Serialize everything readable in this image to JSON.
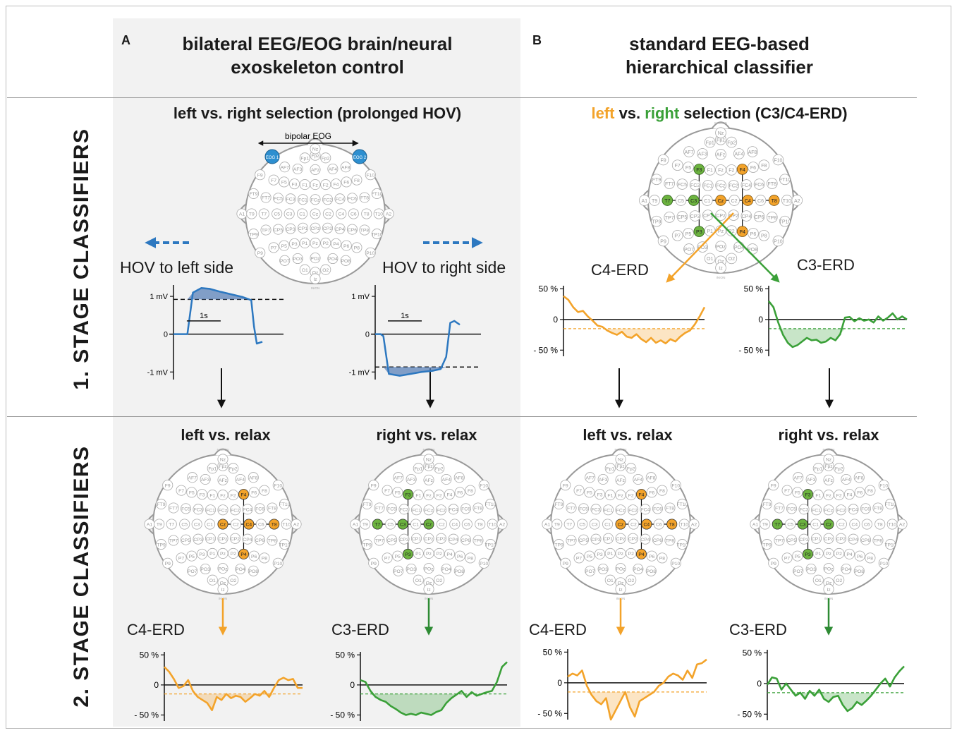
{
  "panel_a": {
    "letter": "A",
    "title_line1": "bilateral EEG/EOG brain/neural",
    "title_line2": "exoskeleton control"
  },
  "panel_b": {
    "letter": "B",
    "title_line1": "standard EEG-based",
    "title_line2": "hierarchical classifier"
  },
  "stage1": {
    "label": "1. STAGE CLASSIFIERS",
    "a_heading": "left vs. right selection (prolonged HOV)",
    "b_heading_left": "left",
    "b_heading_vs": " vs. ",
    "b_heading_right": "right",
    "b_heading_rest": " selection (C3/C4-ERD)",
    "bipolar_label": "bipolar EOG",
    "eog1": "EOG 1",
    "eog2": "EOG 2",
    "hov_left": "HOV to left side",
    "hov_right": "HOV to right side",
    "eog_ticks": {
      "top": "1 mV",
      "mid": "0",
      "bottom": "-1 mV",
      "scale": "1s"
    },
    "erd_left": "C4-ERD",
    "erd_right": "C3-ERD"
  },
  "stage2": {
    "label": "2. STAGE CLASSIFIERS",
    "left_relax": "left vs. relax",
    "right_relax": "right vs. relax",
    "erd_c4": "C4-ERD",
    "erd_c3": "C3-ERD"
  },
  "erd_ticks": {
    "top": "50 %",
    "mid": "0",
    "bottom": "- 50 %"
  },
  "head_labels": {
    "nasion": "NASION",
    "inion": "INION"
  },
  "electrodes": [
    [
      "Fp1",
      -0.16,
      -0.86
    ],
    [
      "Fpz",
      0,
      -0.9
    ],
    [
      "Fp2",
      0.16,
      -0.86
    ],
    [
      "Nz",
      0,
      -1.0
    ],
    [
      "AF7",
      -0.47,
      -0.72
    ],
    [
      "AF3",
      -0.27,
      -0.69
    ],
    [
      "AFz",
      0,
      -0.68
    ],
    [
      "AF4",
      0.27,
      -0.69
    ],
    [
      "AF8",
      0.47,
      -0.72
    ],
    [
      "F9",
      -0.85,
      -0.6
    ],
    [
      "F7",
      -0.64,
      -0.52
    ],
    [
      "F5",
      -0.48,
      -0.49
    ],
    [
      "F3",
      -0.32,
      -0.46
    ],
    [
      "F1",
      -0.16,
      -0.45
    ],
    [
      "Fz",
      0,
      -0.45
    ],
    [
      "F2",
      0.16,
      -0.45
    ],
    [
      "F4",
      0.32,
      -0.46
    ],
    [
      "F6",
      0.48,
      -0.49
    ],
    [
      "F8",
      0.64,
      -0.52
    ],
    [
      "F10",
      0.85,
      -0.6
    ],
    [
      "FT9",
      -0.95,
      -0.31
    ],
    [
      "FT7",
      -0.76,
      -0.25
    ],
    [
      "FC5",
      -0.57,
      -0.24
    ],
    [
      "FC3",
      -0.38,
      -0.23
    ],
    [
      "FC1",
      -0.19,
      -0.22
    ],
    [
      "FCz",
      0,
      -0.22
    ],
    [
      "FC2",
      0.19,
      -0.22
    ],
    [
      "FC4",
      0.38,
      -0.23
    ],
    [
      "FC6",
      0.57,
      -0.24
    ],
    [
      "FT8",
      0.76,
      -0.25
    ],
    [
      "FT10",
      0.95,
      -0.31
    ],
    [
      "A1",
      -1.13,
      0
    ],
    [
      "T9",
      -0.98,
      0
    ],
    [
      "T7",
      -0.79,
      0
    ],
    [
      "C5",
      -0.59,
      0
    ],
    [
      "C3",
      -0.4,
      0
    ],
    [
      "C1",
      -0.2,
      0
    ],
    [
      "Cz",
      0,
      0
    ],
    [
      "C2",
      0.2,
      0
    ],
    [
      "C4",
      0.4,
      0
    ],
    [
      "C6",
      0.59,
      0
    ],
    [
      "T8",
      0.79,
      0
    ],
    [
      "T10",
      0.98,
      0
    ],
    [
      "A2",
      1.13,
      0
    ],
    [
      "TP9",
      -0.95,
      0.31
    ],
    [
      "TP7",
      -0.76,
      0.25
    ],
    [
      "CP5",
      -0.57,
      0.24
    ],
    [
      "CP3",
      -0.38,
      0.23
    ],
    [
      "CP1",
      -0.19,
      0.22
    ],
    [
      "CPz",
      0,
      0.22
    ],
    [
      "CP2",
      0.19,
      0.22
    ],
    [
      "CP4",
      0.38,
      0.23
    ],
    [
      "CP6",
      0.57,
      0.24
    ],
    [
      "TP8",
      0.76,
      0.25
    ],
    [
      "TP10",
      0.95,
      0.31
    ],
    [
      "P9",
      -0.85,
      0.6
    ],
    [
      "P7",
      -0.64,
      0.52
    ],
    [
      "P5",
      -0.48,
      0.49
    ],
    [
      "P3",
      -0.32,
      0.46
    ],
    [
      "P1",
      -0.16,
      0.45
    ],
    [
      "Pz",
      0,
      0.45
    ],
    [
      "P2",
      0.16,
      0.45
    ],
    [
      "P4",
      0.32,
      0.46
    ],
    [
      "P6",
      0.48,
      0.49
    ],
    [
      "P8",
      0.64,
      0.52
    ],
    [
      "P10",
      0.85,
      0.6
    ],
    [
      "PO7",
      -0.47,
      0.72
    ],
    [
      "PO3",
      -0.27,
      0.69
    ],
    [
      "POz",
      0,
      0.68
    ],
    [
      "PO4",
      0.27,
      0.69
    ],
    [
      "PO8",
      0.47,
      0.72
    ],
    [
      "O1",
      -0.16,
      0.86
    ],
    [
      "Oz",
      0,
      0.9
    ],
    [
      "O2",
      0.16,
      0.86
    ],
    [
      "Iz",
      0,
      1.0
    ]
  ],
  "electrode_highlights": {
    "left_group": [
      "F4",
      "Cz",
      "C4",
      "T8",
      "P4"
    ],
    "right_group": [
      "F3",
      "T7",
      "C3",
      "Cz",
      "P3"
    ],
    "left_color": "#f3a32a",
    "right_color": "#6cb33f",
    "eog_color": "#2d8fd0"
  },
  "colors": {
    "orange": "#f3a32a",
    "green": "#3aa038",
    "blue": "#2d78c0",
    "arrow_dark": "#111111"
  },
  "chart_data": [
    {
      "type": "line",
      "id": "eog-left",
      "y_range": [
        -1.2,
        1.3
      ],
      "threshold": 0.92,
      "x": [
        0,
        0.2,
        0.5,
        0.7,
        1.0,
        1.3,
        1.7,
        2.1,
        2.5,
        2.8,
        2.9,
        3.0,
        3.2
      ],
      "values": [
        0,
        0,
        0,
        1.1,
        1.22,
        1.2,
        1.12,
        1.05,
        0.98,
        0.9,
        0.2,
        -0.25,
        -0.2
      ]
    },
    {
      "type": "line",
      "id": "eog-right",
      "y_range": [
        -1.2,
        1.3
      ],
      "threshold": -0.87,
      "x": [
        0,
        0.2,
        0.3,
        0.5,
        0.9,
        1.3,
        1.7,
        2.1,
        2.4,
        2.6,
        2.75,
        2.9,
        3.1
      ],
      "values": [
        0,
        0,
        -0.05,
        -1.05,
        -1.1,
        -1.05,
        -1.0,
        -0.97,
        -0.92,
        -0.6,
        0.3,
        0.35,
        0.25
      ]
    },
    {
      "type": "line",
      "id": "erd-b1-c4",
      "y_range": [
        -60,
        55
      ],
      "threshold": -15,
      "values": [
        38,
        32,
        20,
        12,
        14,
        5,
        -2,
        -10,
        -12,
        -18,
        -22,
        -25,
        -20,
        -28,
        -30,
        -24,
        -32,
        -37,
        -30,
        -38,
        -34,
        -39,
        -32,
        -36,
        -28,
        -22,
        -18,
        -8,
        5,
        20
      ]
    },
    {
      "type": "line",
      "id": "erd-b1-c3",
      "y_range": [
        -60,
        55
      ],
      "threshold": -15,
      "values": [
        30,
        20,
        -5,
        -25,
        -38,
        -45,
        -42,
        -36,
        -30,
        -34,
        -33,
        -38,
        -36,
        -30,
        -34,
        -24,
        3,
        4,
        -3,
        2,
        -2,
        0,
        -5,
        5,
        -2,
        3,
        10,
        0,
        5,
        0
      ]
    },
    {
      "type": "line",
      "id": "erd-a2-c4",
      "y_range": [
        -60,
        55
      ],
      "threshold": -15,
      "values": [
        30,
        22,
        10,
        -5,
        -2,
        8,
        -10,
        -20,
        -25,
        -30,
        -42,
        -20,
        -25,
        -15,
        -22,
        -18,
        -20,
        -28,
        -22,
        -15,
        -18,
        -10,
        -20,
        -5,
        8,
        12,
        8,
        10,
        -5,
        -5
      ]
    },
    {
      "type": "line",
      "id": "erd-a2-c3",
      "y_range": [
        -60,
        55
      ],
      "threshold": -15,
      "values": [
        8,
        5,
        -10,
        -20,
        -25,
        -28,
        -35,
        -40,
        -46,
        -50,
        -48,
        -50,
        -46,
        -48,
        -50,
        -45,
        -42,
        -30,
        -22,
        -16,
        -10,
        -20,
        -12,
        -18,
        -15,
        -12,
        -10,
        5,
        30,
        38
      ]
    },
    {
      "type": "line",
      "id": "erd-b2-c4",
      "y_range": [
        -60,
        55
      ],
      "threshold": -15,
      "values": [
        10,
        15,
        12,
        20,
        -5,
        -20,
        -30,
        -35,
        -25,
        -60,
        -45,
        -30,
        -15,
        -40,
        -55,
        -30,
        -25,
        -20,
        -15,
        -5,
        0,
        10,
        15,
        12,
        5,
        20,
        8,
        30,
        32,
        38
      ]
    },
    {
      "type": "line",
      "id": "erd-b2-c3",
      "y_range": [
        -60,
        55
      ],
      "threshold": -15,
      "values": [
        -2,
        10,
        8,
        -10,
        0,
        -10,
        -20,
        -15,
        -25,
        -12,
        -20,
        -10,
        -25,
        -30,
        -22,
        -20,
        -35,
        -45,
        -40,
        -30,
        -35,
        -28,
        -20,
        -10,
        0,
        8,
        -5,
        10,
        20,
        28
      ]
    }
  ]
}
